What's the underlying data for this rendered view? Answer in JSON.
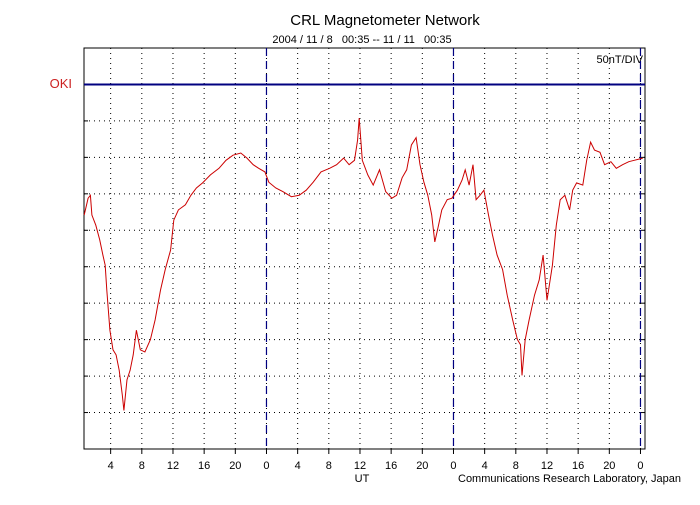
{
  "chart_data": {
    "type": "line",
    "title": "CRL Magnetometer Network",
    "subtitle": "2004 / 11 / 8   00:35 -- 11 / 11   00:35",
    "scale_label": "50nT/DIV",
    "station": "OKI",
    "station_level": 500,
    "x_label": "UT",
    "credit": "Communications Research Laboratory, Japan",
    "color": "#cc0000",
    "station_color": "#000080",
    "day_lines": [
      24,
      48,
      72
    ],
    "grid": true,
    "xlim": [
      0.58,
      72.58
    ],
    "ylim": [
      0,
      550
    ],
    "yticks": [
      50,
      100,
      150,
      200,
      250,
      300,
      350,
      400,
      450,
      500
    ],
    "xticks": [
      4,
      8,
      12,
      16,
      20,
      {
        "value": 24,
        "label": "0"
      },
      {
        "value": 28,
        "label": "4"
      },
      {
        "value": 32,
        "label": "8"
      },
      {
        "value": 36,
        "label": "12"
      },
      {
        "value": 40,
        "label": "16"
      },
      {
        "value": 44,
        "label": "20"
      },
      {
        "value": 48,
        "label": "0"
      },
      {
        "value": 52,
        "label": "4"
      },
      {
        "value": 56,
        "label": "8"
      },
      {
        "value": 60,
        "label": "12"
      },
      {
        "value": 64,
        "label": "16"
      },
      {
        "value": 68,
        "label": "20"
      },
      {
        "value": 72,
        "label": "0"
      }
    ],
    "x": [
      0.6,
      1.1,
      1.4,
      1.6,
      2.1,
      2.6,
      3.0,
      3.3,
      3.5,
      3.9,
      4.3,
      4.7,
      5.1,
      5.5,
      5.7,
      6.1,
      6.5,
      6.9,
      7.3,
      7.8,
      8.4,
      9.1,
      9.7,
      10.4,
      11.0,
      11.7,
      12.1,
      12.7,
      13.6,
      14.3,
      15.0,
      15.8,
      16.8,
      17.9,
      18.8,
      19.7,
      20.7,
      21.5,
      22.3,
      23.0,
      23.8,
      24.3,
      25.2,
      26.1,
      27.2,
      28.2,
      29.1,
      30.0,
      31.0,
      32.1,
      33.0,
      33.9,
      34.6,
      35.3,
      35.7,
      35.9,
      36.3,
      37.0,
      37.7,
      38.5,
      39.3,
      40.1,
      40.7,
      41.4,
      42.0,
      42.6,
      43.2,
      43.7,
      44.2,
      44.7,
      45.2,
      45.6,
      46.0,
      46.5,
      47.2,
      47.8,
      48.5,
      49.1,
      49.5,
      50.0,
      50.5,
      50.9,
      51.4,
      51.9,
      52.5,
      53.0,
      53.6,
      54.3,
      54.9,
      55.6,
      56.2,
      56.6,
      56.8,
      57.2,
      57.7,
      58.4,
      59.0,
      59.5,
      60.0,
      60.7,
      61.2,
      61.7,
      62.3,
      62.9,
      63.3,
      63.8,
      64.6,
      65.1,
      65.6,
      66.1,
      66.8,
      67.4,
      68.2,
      68.9,
      69.7,
      70.5,
      71.2,
      72.3
    ],
    "values": [
      321,
      344,
      348,
      321,
      307,
      287,
      266,
      252,
      218,
      163,
      136,
      129,
      108,
      74,
      53,
      95,
      108,
      129,
      163,
      136,
      133,
      150,
      177,
      218,
      246,
      273,
      314,
      328,
      335,
      348,
      358,
      365,
      376,
      385,
      396,
      403,
      406,
      399,
      390,
      385,
      380,
      366,
      358,
      353,
      346,
      348,
      355,
      366,
      380,
      385,
      390,
      399,
      390,
      396,
      424,
      454,
      396,
      376,
      362,
      383,
      353,
      344,
      348,
      372,
      383,
      417,
      427,
      390,
      366,
      348,
      321,
      284,
      303,
      328,
      342,
      344,
      355,
      369,
      383,
      362,
      390,
      342,
      348,
      355,
      321,
      294,
      266,
      246,
      211,
      177,
      150,
      143,
      101,
      150,
      177,
      211,
      232,
      266,
      204,
      252,
      307,
      342,
      348,
      328,
      355,
      365,
      362,
      396,
      421,
      410,
      407,
      390,
      394,
      385,
      390,
      394,
      396,
      399
    ]
  }
}
